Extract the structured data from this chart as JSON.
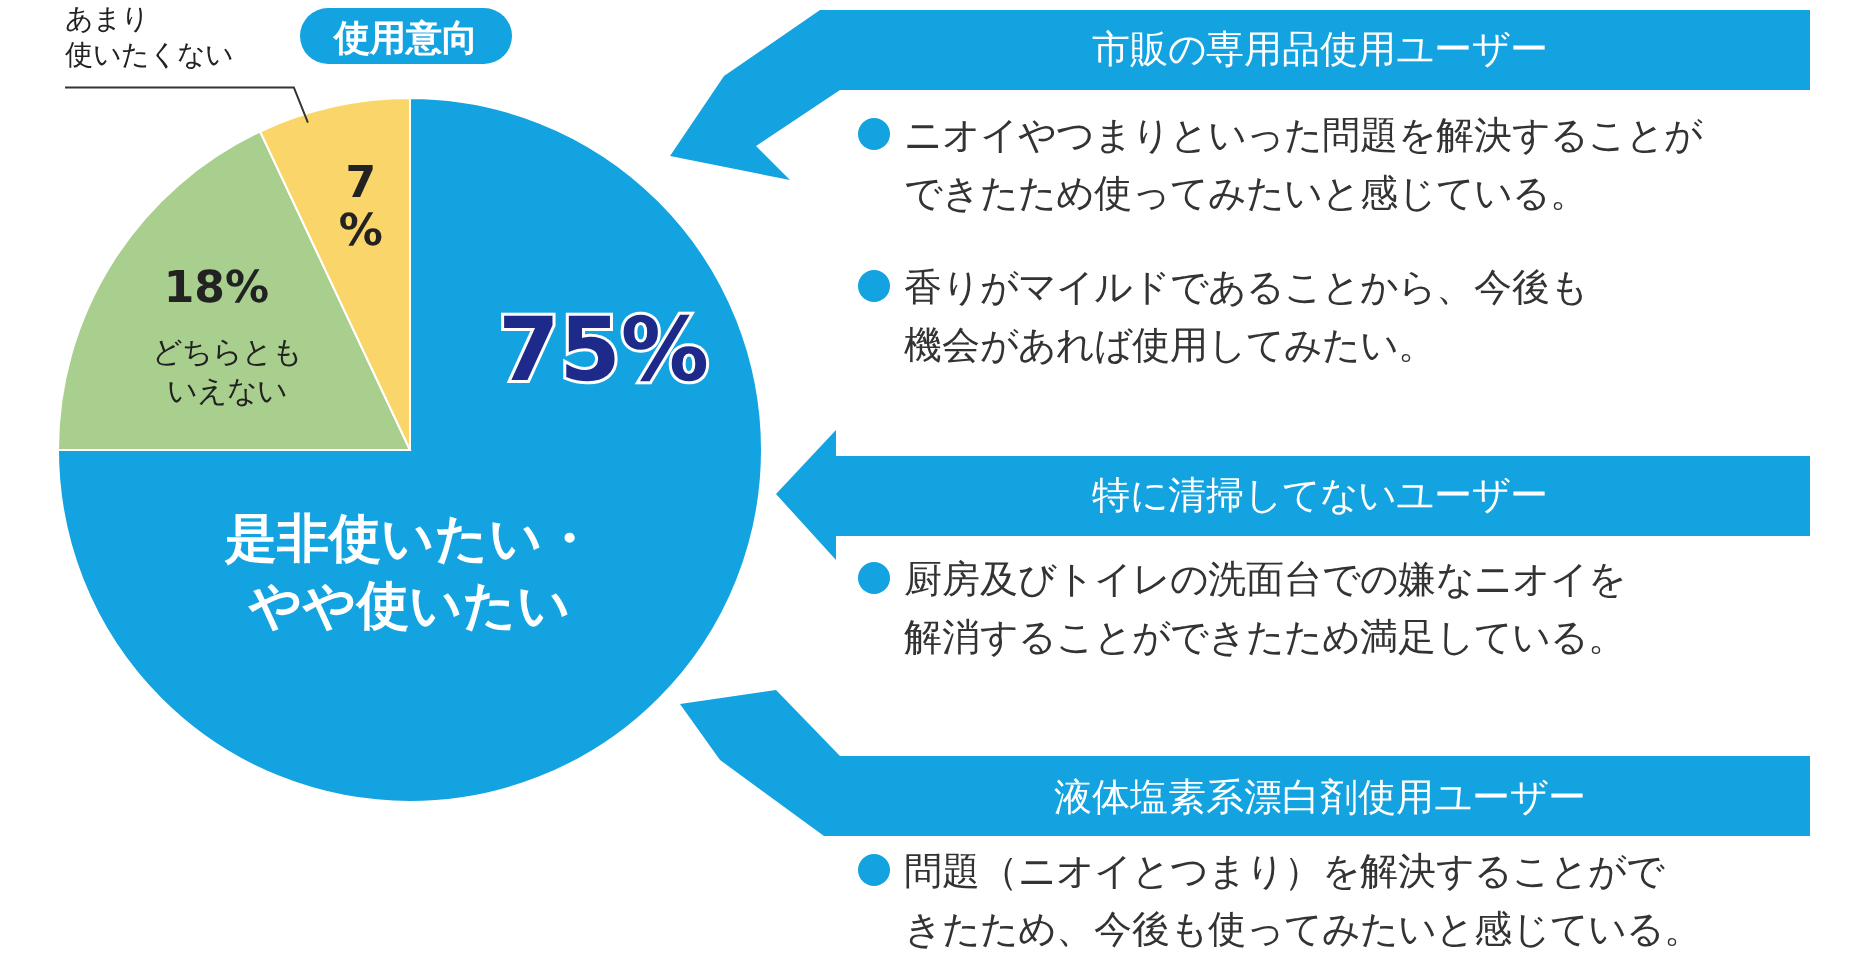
{
  "chart_data": {
    "type": "pie",
    "title": "使用意向",
    "categories": [
      "是非使いたい・やや使いたい",
      "どちらともいえない",
      "あまり使いたくない"
    ],
    "values": [
      75,
      18,
      7
    ],
    "colors": [
      "#12a3e0",
      "#a8cf8e",
      "#fad66a"
    ],
    "value_labels": [
      "75%",
      "18%",
      "7%"
    ],
    "annotations": [
      "市販の専用品使用ユーザー",
      "ニオイやつまりといった問題を解決することができたため使ってみたいと感じている。",
      "香りがマイルドであることから、今後も機会があれば使用してみたい。",
      "特に清掃してないユーザー",
      "厨房及びトイレの洗面台での嫌なニオイを解消することができたため満足している。",
      "液体塩素系漂白剤使用ユーザー",
      "問題（ニオイとつまり）を解決することができたため、今後も使ってみたいと感じている。"
    ]
  }
}
